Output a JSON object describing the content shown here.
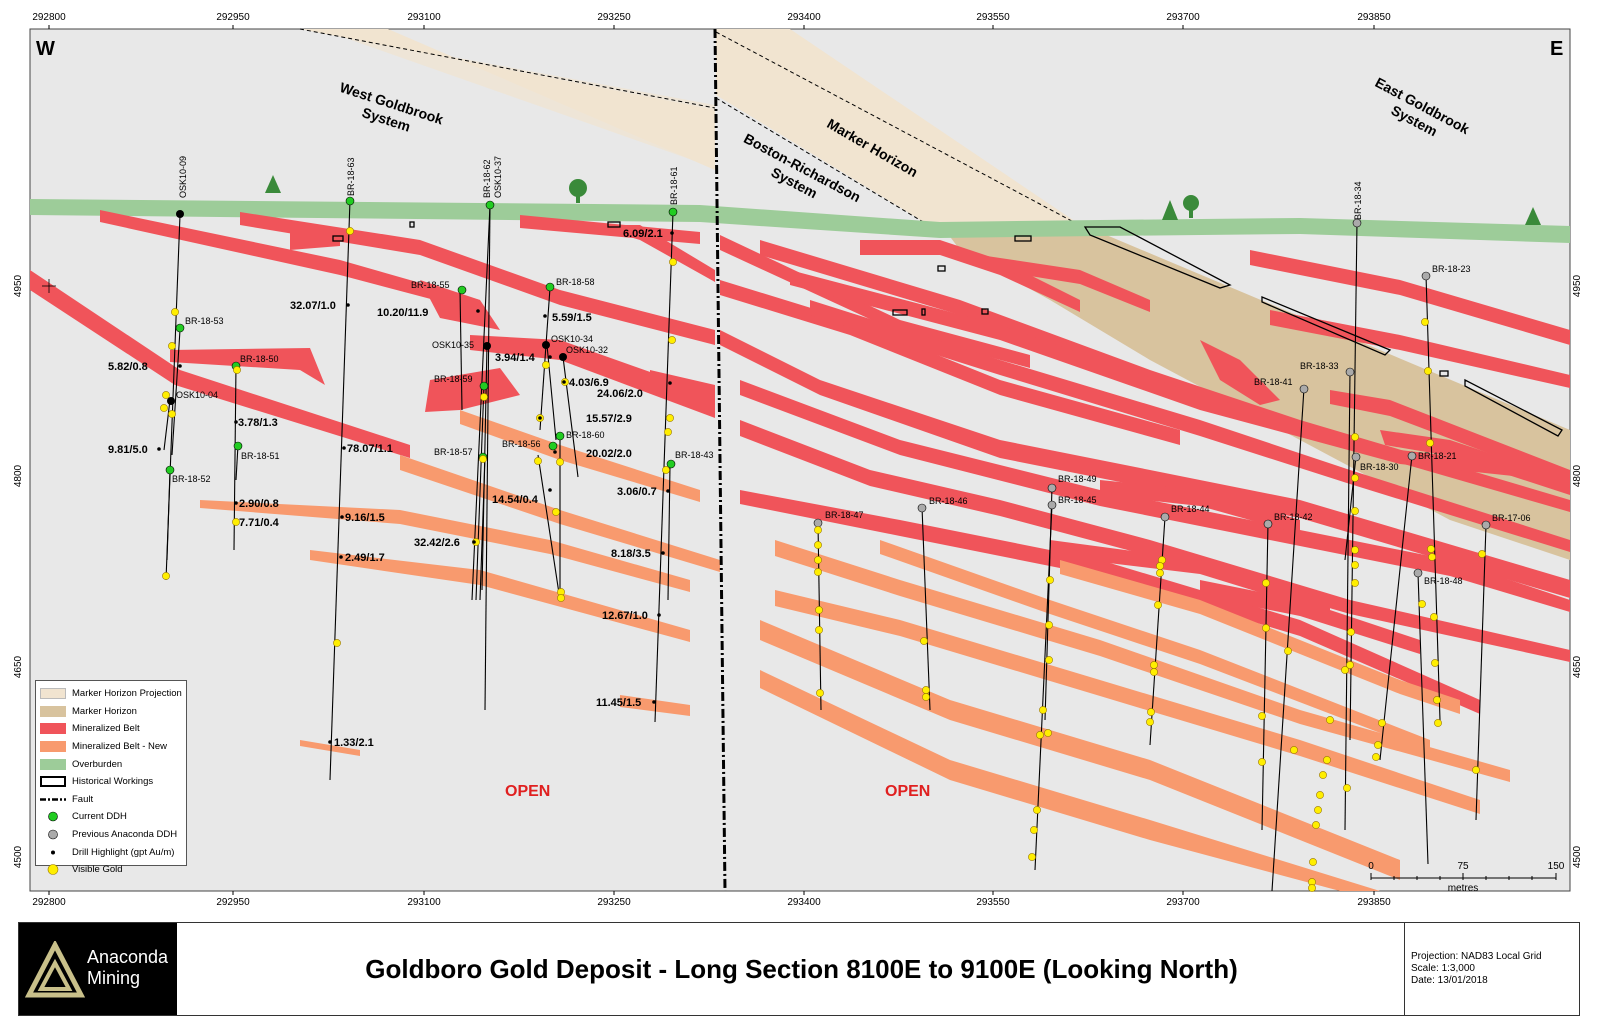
{
  "axis": {
    "x_ticks_top": [
      "292800",
      "292950",
      "293100",
      "293250",
      "293400",
      "293550",
      "293700",
      "293850"
    ],
    "x_ticks_bottom": [
      "292800",
      "292950",
      "293100",
      "293250",
      "293400",
      "293550",
      "293700",
      "293850"
    ],
    "y_ticks": [
      "4950",
      "4800",
      "4650",
      "4500"
    ]
  },
  "corners": {
    "west": "W",
    "east": "E"
  },
  "systems": {
    "west": [
      "West Goldbrook",
      "System"
    ],
    "east": [
      "East Goldbrook",
      "System"
    ],
    "boston": [
      "Boston-Richardson",
      "System"
    ],
    "marker": "Marker Horizon"
  },
  "open_labels": [
    "OPEN",
    "OPEN"
  ],
  "holes": [
    "OSK10-09",
    "BR-18-63",
    "BR-18-62",
    "OSK10-37",
    "BR-18-61",
    "BR-18-53",
    "BR-18-50",
    "OSK10-04",
    "BR-18-51",
    "BR-18-52",
    "BR-18-55",
    "BR-18-58",
    "OSK10-35",
    "OSK10-34",
    "OSK10-32",
    "BR-18-59",
    "BR-18-57",
    "BR-18-56",
    "BR-18-60",
    "BR-18-43",
    "BR-18-34",
    "BR-18-23",
    "BR-18-33",
    "BR-18-41",
    "BR-18-30",
    "BR-18-21",
    "BR-18-49",
    "BR-18-45",
    "BR-18-46",
    "BR-18-47",
    "BR-18-44",
    "BR-18-42",
    "BR-17-06",
    "BR-18-48"
  ],
  "highlights": [
    "6.09/2.1",
    "32.07/1.0",
    "10.20/11.9",
    "5.59/1.5",
    "5.82/0.8",
    "3.94/1.4",
    "4.03/6.9",
    "24.06/2.0",
    "3.78/1.3",
    "15.57/2.9",
    "9.81/5.0",
    "78.07/1.1",
    "20.02/2.0",
    "14.54/0.4",
    "3.06/0.7",
    "2.90/0.8",
    "7.71/0.4",
    "9.16/1.5",
    "32.42/2.6",
    "8.18/3.5",
    "2.49/1.7",
    "12.67/1.0",
    "11.45/1.5",
    "1.33/2.1"
  ],
  "scale_bar": {
    "ticks": [
      "0",
      "75",
      "150"
    ],
    "unit": "metres"
  },
  "legend": [
    {
      "label": "Marker Horizon Projection",
      "swatch": "#f1e4d0"
    },
    {
      "label": "Marker Horizon",
      "swatch": "#d8c39e"
    },
    {
      "label": "Mineralized Belt",
      "swatch": "#f0545a"
    },
    {
      "label": "Mineralized Belt - New",
      "swatch": "#f89a6e"
    },
    {
      "label": "Overburden",
      "swatch": "#9dcc99"
    },
    {
      "label": "Historical Workings",
      "swatch": "outline"
    },
    {
      "label": "Fault",
      "swatch": "dashdot"
    },
    {
      "label": "Current DDH",
      "swatch": "green-dot"
    },
    {
      "label": "Previous Anaconda DDH",
      "swatch": "grey-dot"
    },
    {
      "label": "Drill Highlight (gpt Au/m)",
      "swatch": "black-dot"
    },
    {
      "label": "Visible Gold",
      "swatch": "yellow-dot"
    }
  ],
  "title_block": {
    "logo_line1": "Anaconda",
    "logo_line2": "Mining",
    "title": "Goldboro Gold Deposit - Long Section 8100E to 9100E (Looking North)",
    "projection": "Projection: NAD83 Local Grid",
    "scale": "Scale: 1:3,000",
    "date": "Date: 13/01/2018"
  },
  "colors": {
    "background": "#e8e8e8",
    "mineralized_belt": "#f0545a",
    "mineralized_belt_new": "#f89a6e",
    "marker_horizon": "#d8c39e",
    "marker_projection": "#f1e4d0",
    "overburden": "#9dcc99",
    "current_ddh": "#22cc22",
    "previous_ddh": "#aaaaaa",
    "visible_gold": "#ffee00",
    "open_text": "#e02020"
  }
}
